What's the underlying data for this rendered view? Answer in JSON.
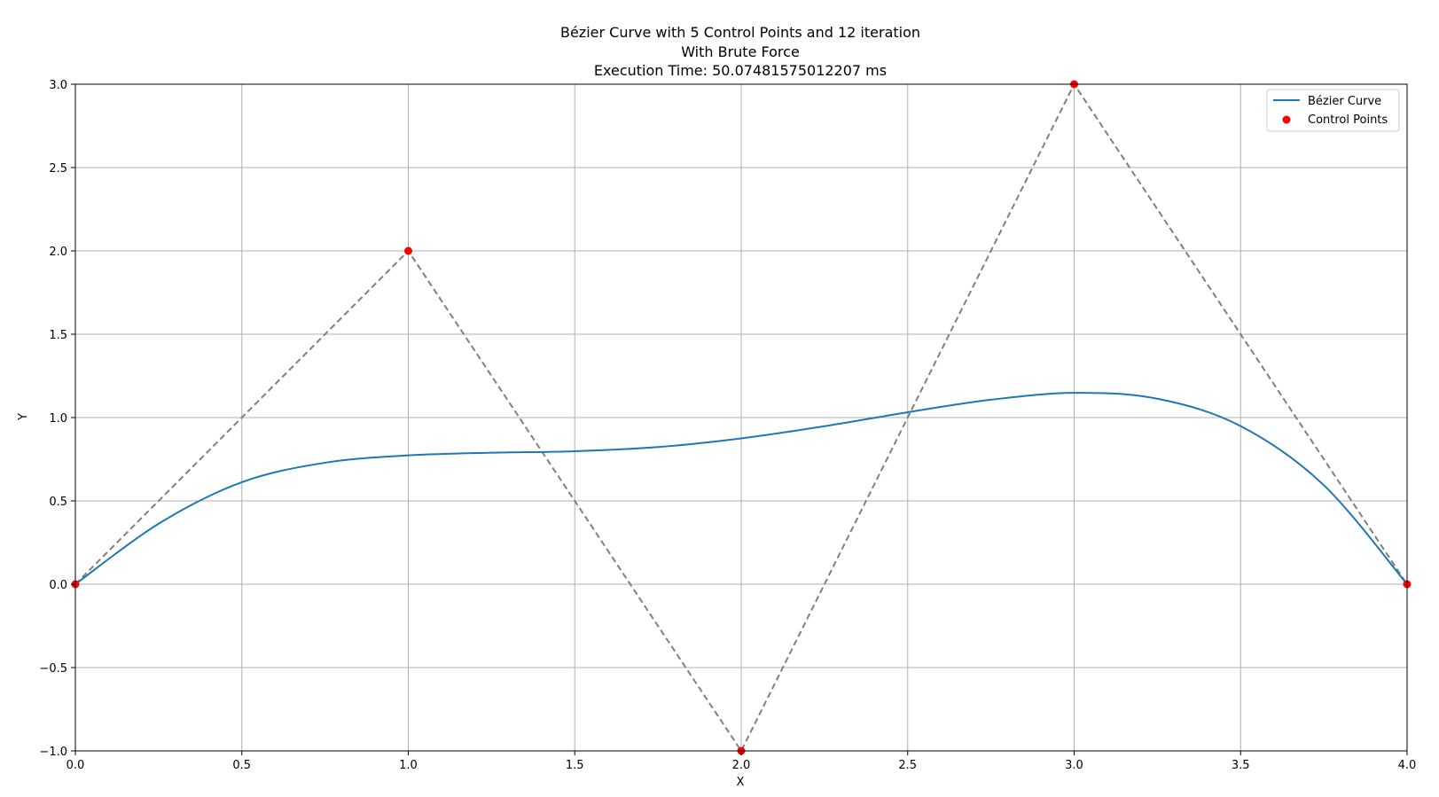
{
  "chart_data": {
    "type": "line",
    "title_lines": [
      "Bézier Curve with 5 Control Points and 12 iteration",
      "With Brute Force",
      "Execution Time: 50.07481575012207 ms"
    ],
    "xlabel": "X",
    "ylabel": "Y",
    "xlim": [
      0.0,
      4.0
    ],
    "ylim": [
      -1.0,
      3.0
    ],
    "x_ticks": [
      0.0,
      0.5,
      1.0,
      1.5,
      2.0,
      2.5,
      3.0,
      3.5,
      4.0
    ],
    "y_ticks": [
      -1.0,
      -0.5,
      0.0,
      0.5,
      1.0,
      1.5,
      2.0,
      2.5,
      3.0
    ],
    "x_tick_labels": [
      "0.0",
      "0.5",
      "1.0",
      "1.5",
      "2.0",
      "2.5",
      "3.0",
      "3.5",
      "4.0"
    ],
    "y_tick_labels": [
      "−1.0",
      "−0.5",
      "0.0",
      "0.5",
      "1.0",
      "1.5",
      "2.0",
      "2.5",
      "3.0"
    ],
    "grid": true,
    "legend_position": "top-right",
    "series": [
      {
        "name": "Bézier Curve",
        "kind": "line",
        "color": "#1f77b4",
        "points": [
          [
            0.0,
            0.0
          ],
          [
            0.25,
            0.363
          ],
          [
            0.5,
            0.612
          ],
          [
            0.75,
            0.729
          ],
          [
            1.0,
            0.773
          ],
          [
            1.25,
            0.789
          ],
          [
            1.5,
            0.798
          ],
          [
            1.75,
            0.823
          ],
          [
            2.0,
            0.875
          ],
          [
            2.25,
            0.948
          ],
          [
            2.5,
            1.032
          ],
          [
            2.75,
            1.107
          ],
          [
            3.0,
            1.148
          ],
          [
            3.25,
            1.113
          ],
          [
            3.5,
            0.949
          ],
          [
            3.75,
            0.594
          ],
          [
            4.0,
            0.0
          ]
        ]
      },
      {
        "name": "Control Points",
        "kind": "scatter",
        "color": "#ff0000",
        "points": [
          [
            0,
            0
          ],
          [
            1,
            2
          ],
          [
            2,
            -1
          ],
          [
            3,
            3
          ],
          [
            4,
            0
          ]
        ]
      }
    ],
    "control_polygon": {
      "color": "#808080",
      "style": "dashed",
      "points": [
        [
          0,
          0
        ],
        [
          1,
          2
        ],
        [
          2,
          -1
        ],
        [
          3,
          3
        ],
        [
          4,
          0
        ]
      ]
    }
  }
}
